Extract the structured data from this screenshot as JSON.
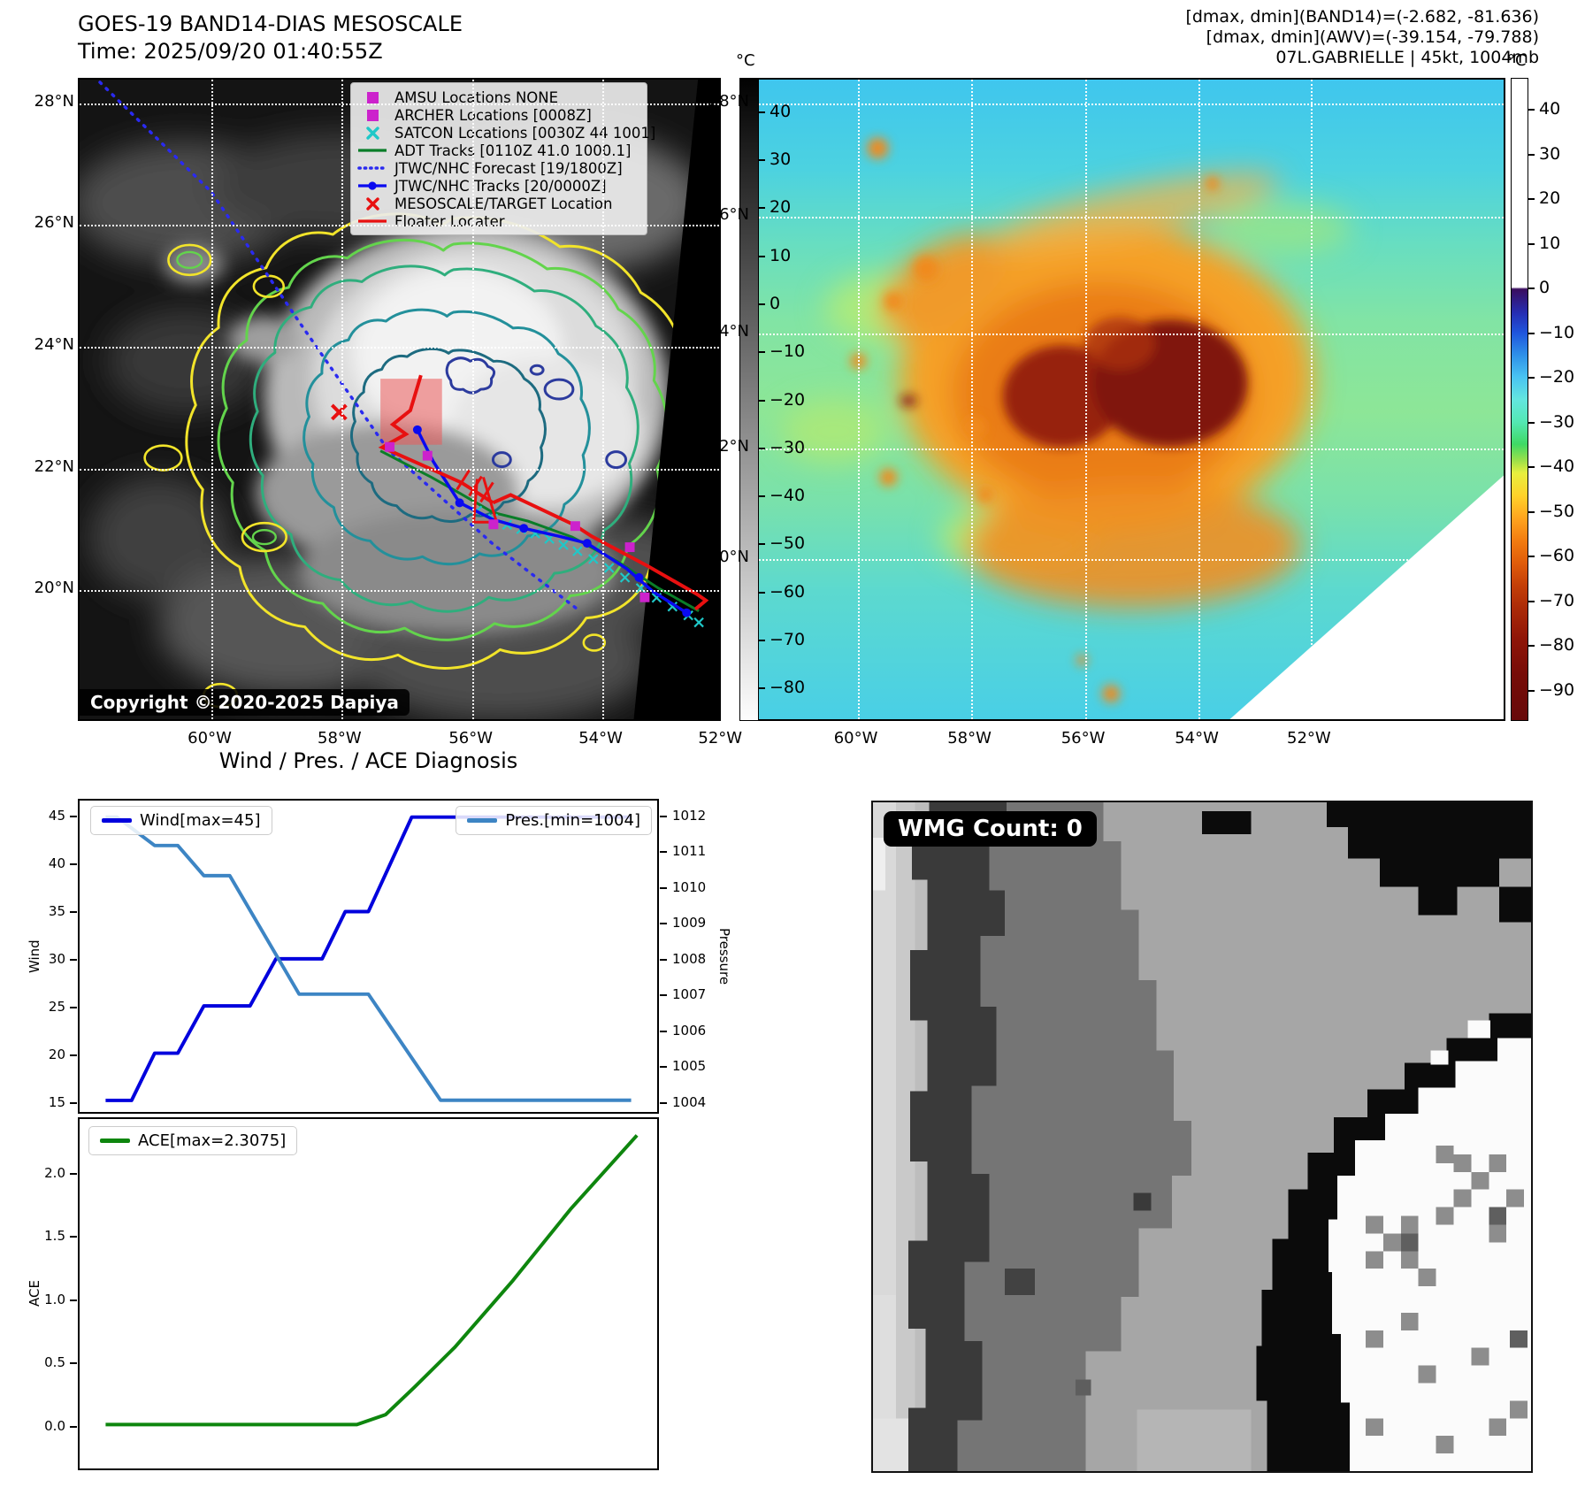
{
  "header": {
    "title_line1": "GOES-19 BAND14-DIAS MESOSCALE",
    "title_line2": "Time: 2025/09/20 01:40:55Z",
    "info_line1": "[dmax, dmin](BAND14)=(-2.682, -81.636)",
    "info_line2": "[dmax, dmin](AWV)=(-39.154, -79.788)",
    "info_line3": "07L.GABRIELLE | 45kt, 1004mb"
  },
  "band14_map": {
    "legend": [
      {
        "marker": "square",
        "color": "#cc22cc",
        "label": "AMSU Locations NONE"
      },
      {
        "marker": "square",
        "color": "#cc22cc",
        "label": "ARCHER Locations [0008Z]"
      },
      {
        "marker": "x",
        "color": "#1fc8c8",
        "label": "SATCON Locations [0030Z 44 1001]"
      },
      {
        "marker": "line",
        "color": "#0a7d28",
        "label": "ADT Tracks [0110Z 41.0 1000.1]"
      },
      {
        "marker": "dotted",
        "color": "#2a2af0",
        "label": "JTWC/NHC Forecast [19/1800Z]"
      },
      {
        "marker": "line-dot",
        "color": "#0a0af0",
        "label": "JTWC/NHC Tracks [20/0000Z]"
      },
      {
        "marker": "x",
        "color": "#e81010",
        "label": "MESOSCALE/TARGET Location"
      },
      {
        "marker": "line",
        "color": "#e81010",
        "label": "Floater Locater"
      }
    ],
    "copyright": "Copyright © 2020-2025 Dapiya",
    "lat_ticks": [
      "28°N",
      "26°N",
      "24°N",
      "22°N",
      "20°N"
    ],
    "lon_ticks": [
      "60°W",
      "58°W",
      "56°W",
      "54°W",
      "52°W"
    ],
    "colorbar": {
      "unit": "°C",
      "ticks": [
        {
          "v": 40,
          "label": "40"
        },
        {
          "v": 30,
          "label": "30"
        },
        {
          "v": 20,
          "label": "20"
        },
        {
          "v": 10,
          "label": "10"
        },
        {
          "v": 0,
          "label": "0"
        },
        {
          "v": -10,
          "label": "−10"
        },
        {
          "v": -20,
          "label": "−20"
        },
        {
          "v": -30,
          "label": "−30"
        },
        {
          "v": -40,
          "label": "−40"
        },
        {
          "v": -50,
          "label": "−50"
        },
        {
          "v": -60,
          "label": "−60"
        },
        {
          "v": -70,
          "label": "−70"
        },
        {
          "v": -80,
          "label": "−80"
        }
      ]
    }
  },
  "awv_map": {
    "lat_ticks": [
      "28°N",
      "26°N",
      "24°N",
      "22°N",
      "20°N"
    ],
    "lon_ticks": [
      "60°W",
      "58°W",
      "56°W",
      "54°W",
      "52°W"
    ],
    "colorbar": {
      "unit": "°C",
      "ticks": [
        {
          "v": 40,
          "label": "40"
        },
        {
          "v": 30,
          "label": "30"
        },
        {
          "v": 20,
          "label": "20"
        },
        {
          "v": 10,
          "label": "10"
        },
        {
          "v": 0,
          "label": "0"
        },
        {
          "v": -10,
          "label": "−10"
        },
        {
          "v": -20,
          "label": "−20"
        },
        {
          "v": -30,
          "label": "−30"
        },
        {
          "v": -40,
          "label": "−40"
        },
        {
          "v": -50,
          "label": "−50"
        },
        {
          "v": -60,
          "label": "−60"
        },
        {
          "v": -70,
          "label": "−70"
        },
        {
          "v": -80,
          "label": "−80"
        },
        {
          "v": -90,
          "label": "−90"
        }
      ]
    }
  },
  "wmg_panel": {
    "badge": "WMG Count: 0"
  },
  "chart_data": [
    {
      "type": "line",
      "title": "Wind / Pres. / ACE Diagnosis",
      "ylabel_left": "Wind",
      "ylabel_right": "Pressure",
      "grid": false,
      "legend_pos": [
        "upper left",
        "upper right"
      ],
      "ylim_left": [
        13.78,
        46.75
      ],
      "ylim_right": [
        1003.67,
        1012.47
      ],
      "yticks_left": [
        {
          "v": 15,
          "label": "15"
        },
        {
          "v": 20,
          "label": "20"
        },
        {
          "v": 25,
          "label": "25"
        },
        {
          "v": 30,
          "label": "30"
        },
        {
          "v": 35,
          "label": "35"
        },
        {
          "v": 40,
          "label": "40"
        },
        {
          "v": 45,
          "label": "45"
        }
      ],
      "yticks_right": [
        {
          "v": 1004,
          "label": "1004"
        },
        {
          "v": 1005,
          "label": "1005"
        },
        {
          "v": 1006,
          "label": "1006"
        },
        {
          "v": 1007,
          "label": "1007"
        },
        {
          "v": 1008,
          "label": "1008"
        },
        {
          "v": 1009,
          "label": "1009"
        },
        {
          "v": 1010,
          "label": "1010"
        },
        {
          "v": 1011,
          "label": "1011"
        },
        {
          "v": 1012,
          "label": "1012"
        }
      ],
      "series": [
        {
          "name": "Wind[max=45]",
          "axis": "left",
          "color": "#0000dd",
          "x": [
            0.045,
            0.09,
            0.13,
            0.17,
            0.215,
            0.295,
            0.34,
            0.42,
            0.46,
            0.5,
            0.575,
            0.955
          ],
          "y": [
            15,
            15,
            20,
            20,
            25,
            25,
            30,
            30,
            35,
            35,
            45,
            45
          ]
        },
        {
          "name": "Pres.[min=1004]",
          "axis": "right",
          "color": "#3d85c4",
          "x": [
            0.045,
            0.065,
            0.13,
            0.17,
            0.215,
            0.26,
            0.38,
            0.5,
            0.625,
            0.955
          ],
          "y": [
            1012,
            1012,
            1011.2,
            1011.2,
            1010.35,
            1010.35,
            1007,
            1007,
            1004,
            1004
          ]
        }
      ]
    },
    {
      "type": "line",
      "ylabel_left": "ACE",
      "grid": false,
      "legend_pos": [
        "upper left"
      ],
      "ylim_left": [
        -0.35,
        2.44
      ],
      "yticks_left": [
        {
          "v": 0,
          "label": "0.0"
        },
        {
          "v": 0.5,
          "label": "0.5"
        },
        {
          "v": 1.0,
          "label": "1.0"
        },
        {
          "v": 1.5,
          "label": "1.5"
        },
        {
          "v": 2.0,
          "label": "2.0"
        }
      ],
      "series": [
        {
          "name": "ACE[max=2.3075]",
          "axis": "left",
          "color": "#0e860e",
          "x": [
            0.045,
            0.48,
            0.53,
            0.58,
            0.65,
            0.75,
            0.85,
            0.965
          ],
          "y": [
            0.0,
            0.0,
            0.08,
            0.3,
            0.62,
            1.15,
            1.72,
            2.31
          ]
        }
      ]
    }
  ]
}
